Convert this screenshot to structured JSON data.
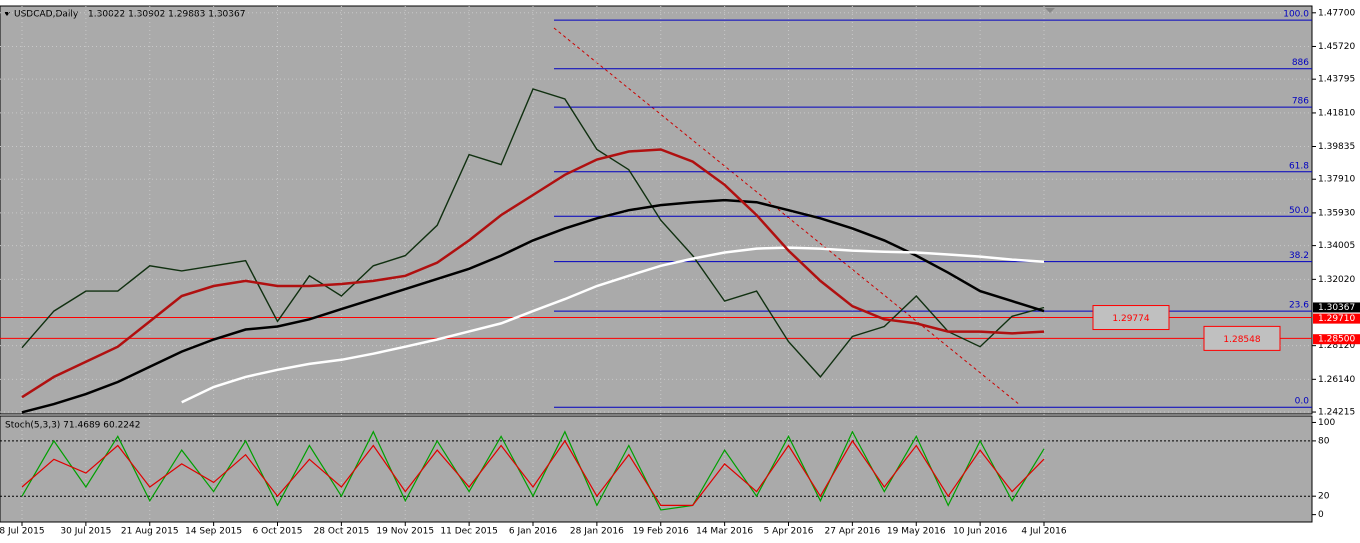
{
  "header": {
    "symbol_text": "USDCAD,Daily",
    "ohlc_text": "1.30022 1.30902 1.29883 1.30367"
  },
  "chart_data": [
    {
      "type": "line",
      "categories": [
        "8 Jul 2015",
        null,
        "30 Jul 2015",
        null,
        "21 Aug 2015",
        null,
        "14 Sep 2015",
        null,
        "6 Oct 2015",
        null,
        "28 Oct 2015",
        null,
        "19 Nov 2015",
        null,
        "11 Dec 2015",
        null,
        "6 Jan 2016",
        null,
        "28 Jan 2016",
        null,
        "19 Feb 2016",
        null,
        "14 Mar 2016",
        null,
        "5 Apr 2016",
        null,
        "27 Apr 2016",
        null,
        "19 May 2016",
        null,
        "10 Jun 2016",
        null,
        "4 Jul 2016"
      ],
      "series": [
        {
          "color": "#103010",
          "values": [
            1.28,
            1.3015,
            1.3133,
            1.3133,
            1.3282,
            1.3252,
            1.3282,
            1.3312,
            1.2955,
            1.3223,
            1.3104,
            1.3282,
            1.3342,
            1.352,
            1.3936,
            1.3877,
            1.4322,
            1.4263,
            1.3966,
            1.3847,
            1.355,
            1.3342,
            1.3074,
            1.3133,
            1.2836,
            1.2628,
            1.2866,
            1.2925,
            1.3104,
            1.2895,
            1.2806,
            1.2985,
            1.30367
          ]
        },
        {
          "color": "#000000",
          "values": [
            1.242,
            1.2468,
            1.2527,
            1.2598,
            1.2688,
            1.2777,
            1.2848,
            1.2907,
            1.2925,
            1.2967,
            1.3027,
            1.3086,
            1.3145,
            1.3205,
            1.3264,
            1.3342,
            1.3431,
            1.3502,
            1.3561,
            1.3609,
            1.3639,
            1.3656,
            1.3668,
            1.3656,
            1.3609,
            1.3561,
            1.3502,
            1.3431,
            1.3342,
            1.3241,
            1.3133,
            1.3074,
            1.3015
          ]
        },
        {
          "color": "#ffffff",
          "values": [
            null,
            null,
            null,
            null,
            null,
            1.2479,
            1.2569,
            1.2628,
            1.267,
            1.2705,
            1.2729,
            1.2765,
            1.2806,
            1.2848,
            1.2896,
            1.2943,
            1.3015,
            1.3086,
            1.3163,
            1.3223,
            1.3282,
            1.3324,
            1.336,
            1.3383,
            1.3389,
            1.3383,
            1.3371,
            1.3365,
            1.336,
            1.3348,
            1.3336,
            1.3318,
            1.3306
          ]
        },
        {
          "color": "#b01010",
          "values": [
            1.2509,
            1.2628,
            1.2717,
            1.2806,
            1.2955,
            1.3104,
            1.3163,
            1.3193,
            1.3163,
            1.3163,
            1.3175,
            1.3193,
            1.3223,
            1.33,
            1.3431,
            1.358,
            1.3698,
            1.3817,
            1.3907,
            1.3954,
            1.3966,
            1.3895,
            1.3758,
            1.358,
            1.3371,
            1.3193,
            1.3044,
            1.2967,
            1.2943,
            1.2895,
            1.2895,
            1.2884,
            1.2895
          ]
        }
      ],
      "ylim": [
        1.241,
        1.481
      ],
      "yticks": [
        {
          "value": 1.477,
          "label": "1.47700"
        },
        {
          "value": 1.4572,
          "label": "1.45720"
        },
        {
          "value": 1.43795,
          "label": "1.43795"
        },
        {
          "value": 1.4181,
          "label": "1.41810"
        },
        {
          "value": 1.39835,
          "label": "1.39835"
        },
        {
          "value": 1.3791,
          "label": "1.37910"
        },
        {
          "value": 1.3593,
          "label": "1.35930"
        },
        {
          "value": 1.34005,
          "label": "1.34005"
        },
        {
          "value": 1.3202,
          "label": "1.32020"
        },
        {
          "value": 1.2812,
          "label": "1.28120"
        },
        {
          "value": 1.2614,
          "label": "1.26140"
        },
        {
          "value": 1.24215,
          "label": "1.24215"
        }
      ],
      "axis_markers": [
        {
          "value": 1.30367,
          "label": "1.30367",
          "color": "#000000"
        },
        {
          "value": 1.2971,
          "label": "1.29710",
          "color": "#ff0000"
        },
        {
          "value": 1.285,
          "label": "1.28500",
          "color": "#ff0000"
        }
      ],
      "fib_levels": [
        {
          "label": "100.0",
          "value": 1.4727
        },
        {
          "label": "886",
          "value": 1.4441
        },
        {
          "label": "786",
          "value": 1.4215
        },
        {
          "label": "61.8",
          "value": 1.3835
        },
        {
          "label": "50.0",
          "value": 1.3573
        },
        {
          "label": "38.2",
          "value": 1.3306
        },
        {
          "label": "23.6",
          "value": 1.3015
        },
        {
          "label": "0.0",
          "value": 1.245
        }
      ],
      "levels": [
        {
          "value": 1.29774,
          "label": "1.29774"
        },
        {
          "value": 1.28548,
          "label": "1.28548"
        }
      ],
      "grid": true
    },
    {
      "type": "line",
      "title": "Stoch(5,3,3) 71.4689 60.2242",
      "series": [
        {
          "color": "#00a000",
          "values": [
            20,
            80,
            30,
            85,
            15,
            70,
            25,
            80,
            10,
            75,
            20,
            90,
            15,
            80,
            25,
            85,
            20,
            90,
            10,
            75,
            5,
            10,
            70,
            20,
            85,
            15,
            90,
            25,
            85,
            10,
            80,
            15,
            71.4689
          ]
        },
        {
          "color": "#e00000",
          "values": [
            30,
            60,
            45,
            75,
            30,
            55,
            35,
            65,
            20,
            60,
            30,
            75,
            25,
            70,
            30,
            75,
            30,
            80,
            20,
            65,
            10,
            10,
            55,
            25,
            75,
            20,
            80,
            30,
            75,
            20,
            70,
            25,
            60.2242
          ]
        }
      ],
      "ylim": [
        -8,
        107
      ],
      "yticks": [
        0,
        20,
        80,
        100
      ],
      "levels": [
        20,
        80
      ]
    }
  ]
}
